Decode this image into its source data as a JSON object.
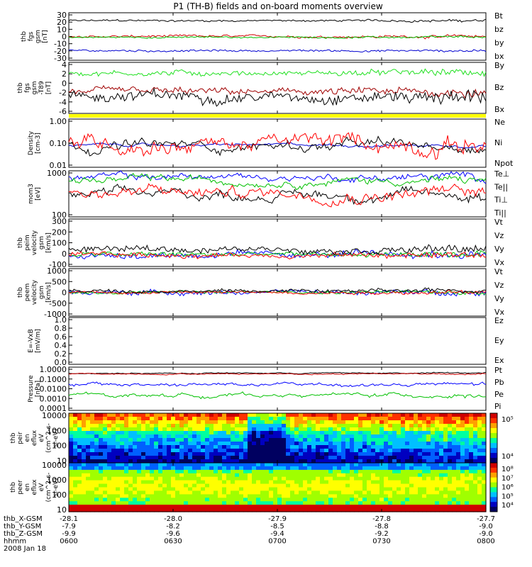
{
  "title": "P1 (TH-B) fields and on-board moments overview",
  "chart_data": [
    {
      "type": "line",
      "ylabel": [
        "thb",
        "fgs",
        "gsm",
        "[nT]"
      ],
      "yticks": [
        "30",
        "20",
        "10",
        "0",
        "-10",
        "-20",
        "-30"
      ],
      "ylim": [
        -30,
        30
      ],
      "scale": "linear",
      "legend": [
        {
          "name": "Bt",
          "color": "#000000"
        },
        {
          "name": "bz",
          "color": "#d00000"
        },
        {
          "name": "by",
          "color": "#00c000"
        },
        {
          "name": "bx",
          "color": "#0000d0"
        }
      ],
      "series": [
        {
          "name": "Bt",
          "color": "#000000",
          "base": 20,
          "noise": 1.2
        },
        {
          "name": "bz",
          "color": "#d00000",
          "base": 0,
          "noise": 1.5
        },
        {
          "name": "by",
          "color": "#00c000",
          "base": -1,
          "noise": 1.0
        },
        {
          "name": "bx",
          "color": "#0000d0",
          "base": -18,
          "noise": 1.2
        }
      ]
    },
    {
      "type": "line",
      "ylabel": [
        "thb",
        "fgs",
        "gsm",
        "-T89",
        "[nT]"
      ],
      "yticks": [
        "4",
        "2",
        "0",
        "-2",
        "-4",
        "-6"
      ],
      "ylim": [
        -7,
        5
      ],
      "scale": "linear",
      "legend": [
        {
          "name": "By",
          "color": "#00d000"
        },
        {
          "name": "Bz",
          "color": "#a00000"
        },
        {
          "name": "Bx",
          "color": "#000000"
        }
      ],
      "series": [
        {
          "name": "By",
          "color": "#20e020",
          "base": 2.5,
          "noise": 0.6
        },
        {
          "name": "Bz",
          "color": "#a00000",
          "base": -2,
          "noise": 0.8
        },
        {
          "name": "Bx",
          "color": "#000000",
          "base": -3,
          "noise": 1.2
        }
      ]
    },
    {
      "type": "flag",
      "color": "#ffff00"
    },
    {
      "type": "line",
      "ylabel": [
        "Density",
        "[cm-3]"
      ],
      "yticks": [
        "1.00",
        "0.10",
        "0.01"
      ],
      "ylim": [
        0.01,
        1.5
      ],
      "scale": "log",
      "legend": [
        {
          "name": "Ne",
          "color": "#d00000"
        },
        {
          "name": "Ni",
          "color": "#000000"
        },
        {
          "name": "Npot",
          "color": "#0000d0"
        }
      ],
      "series": [
        {
          "name": "Npot",
          "color": "#0000d0",
          "base": 0.1,
          "noise": 0.05
        },
        {
          "name": "Ni",
          "color": "#000000",
          "base": 0.09,
          "noise": 0.2
        },
        {
          "name": "Ne",
          "color": "#ff0000",
          "base": 0.12,
          "noise": 0.3
        }
      ]
    },
    {
      "type": "line",
      "ylabel": [
        "mom3",
        "[eV]"
      ],
      "yticks": [
        "1000",
        "100"
      ],
      "ylim": [
        30,
        5000
      ],
      "scale": "log",
      "legend": [
        {
          "name": "Te⊥",
          "color": "#d00000"
        },
        {
          "name": "Te||",
          "color": "#000000"
        },
        {
          "name": "Ti⊥",
          "color": "#d00000"
        },
        {
          "name": "Ti||",
          "color": "#00c000"
        }
      ],
      "series": [
        {
          "name": "Ti⊥",
          "color": "#0000ff",
          "base": 2500,
          "noise": 0.15
        },
        {
          "name": "Ti||",
          "color": "#00c000",
          "base": 1700,
          "noise": 0.15
        },
        {
          "name": "Te||",
          "color": "#000000",
          "base": 350,
          "noise": 0.2
        },
        {
          "name": "Te⊥",
          "color": "#ff0000",
          "base": 450,
          "noise": 0.25
        }
      ]
    },
    {
      "type": "line",
      "ylabel": [
        "thb",
        "peim",
        "velocity",
        "gsm",
        "[km/s]"
      ],
      "yticks": [
        "300",
        "200",
        "100",
        "0",
        "-100"
      ],
      "ylim": [
        -100,
        300
      ],
      "scale": "linear",
      "legend": [
        {
          "name": "Vt",
          "color": "#000000"
        },
        {
          "name": "Vz",
          "color": "#d00000"
        },
        {
          "name": "Vy",
          "color": "#00c000"
        },
        {
          "name": "Vx",
          "color": "#0000d0"
        }
      ],
      "series": [
        {
          "name": "Vx",
          "color": "#0000ff",
          "base": 0,
          "noise": 25
        },
        {
          "name": "Vy",
          "color": "#00c000",
          "base": 0,
          "noise": 20
        },
        {
          "name": "Vz",
          "color": "#ff0000",
          "base": -5,
          "noise": 20
        },
        {
          "name": "Vt",
          "color": "#000000",
          "base": 45,
          "noise": 25
        }
      ]
    },
    {
      "type": "line",
      "ylabel": [
        "thb",
        "peem",
        "velocity",
        "gsm",
        "[km/s]"
      ],
      "yticks": [
        "1000",
        "500",
        "0",
        "-500",
        "-1000"
      ],
      "ylim": [
        -1000,
        1000
      ],
      "scale": "linear",
      "legend": [
        {
          "name": "Vt",
          "color": "#000000"
        },
        {
          "name": "Vz",
          "color": "#d00000"
        },
        {
          "name": "Vy",
          "color": "#00c000"
        },
        {
          "name": "Vx",
          "color": "#0000d0"
        }
      ],
      "series": [
        {
          "name": "Vx",
          "color": "#0000ff",
          "base": 0,
          "noise": 90
        },
        {
          "name": "Vy",
          "color": "#00c000",
          "base": 0,
          "noise": 60
        },
        {
          "name": "Vz",
          "color": "#ff0000",
          "base": 0,
          "noise": 60
        },
        {
          "name": "Vt",
          "color": "#000000",
          "base": 60,
          "noise": 70
        }
      ]
    },
    {
      "type": "empty",
      "ylabel": [
        "E=-VxB",
        "[mV/m]"
      ],
      "yticks": [
        "1.0",
        "0.8",
        "0.6",
        "0.4",
        "0.2",
        "0.0"
      ],
      "ylim": [
        0,
        1
      ],
      "legend": [
        {
          "name": "Ez",
          "color": "#d00000"
        },
        {
          "name": "Ey",
          "color": "#00c000"
        },
        {
          "name": "Ex",
          "color": "#0000d0"
        }
      ]
    },
    {
      "type": "line",
      "ylabel": [
        "Pressure",
        "[nPa]"
      ],
      "yticks": [
        "1.0000",
        "0.1000",
        "0.0100",
        "0.0010",
        "0.0001"
      ],
      "ylim": [
        0.0001,
        1.5
      ],
      "scale": "log",
      "legend": [
        {
          "name": "Pt",
          "color": "#000000"
        },
        {
          "name": "Pb",
          "color": "#d00000"
        },
        {
          "name": "Pe",
          "color": "#00c000"
        },
        {
          "name": "Pi",
          "color": "#0000d0"
        }
      ],
      "series": [
        {
          "name": "Pt",
          "color": "#000000",
          "base": 0.4,
          "noise": 0.05
        },
        {
          "name": "Pb",
          "color": "#d00000",
          "base": 0.35,
          "noise": 0.05
        },
        {
          "name": "Pi",
          "color": "#0000ff",
          "base": 0.03,
          "noise": 0.15
        },
        {
          "name": "Pe",
          "color": "#00c000",
          "base": 0.003,
          "noise": 0.15
        }
      ]
    },
    {
      "type": "heatmap",
      "ylabel": [
        "thb",
        "peir",
        "en",
        "eflux",
        "eV",
        "(cm^2-s-",
        "sr-eV)"
      ],
      "yticks": [
        "10000",
        "1000",
        "100",
        "10"
      ],
      "scale": "log",
      "colorbar": [
        "10⁵",
        "10⁴"
      ]
    },
    {
      "type": "heatmap",
      "ylabel": [
        "thb",
        "peer",
        "en",
        "eflux",
        "eV",
        "(cm^2-s-",
        "sr-eV)"
      ],
      "yticks": [
        "10000",
        "1000",
        "100",
        "10"
      ],
      "scale": "log",
      "colorbar": [
        "10⁸",
        "10⁷",
        "10⁶",
        "10⁵",
        "10⁴"
      ]
    }
  ],
  "xaxis": {
    "rows": [
      {
        "label": "thb_X-GSM",
        "values": [
          "-28.1",
          "-28.0",
          "-27.9",
          "-27.8",
          "-27.7"
        ]
      },
      {
        "label": "thb_Y-GSM",
        "values": [
          "-7.9",
          "-8.2",
          "-8.5",
          "-8.8",
          "-9.0"
        ]
      },
      {
        "label": "thb_Z-GSM",
        "values": [
          "-9.9",
          "-9.6",
          "-9.4",
          "-9.2",
          "-9.0"
        ]
      },
      {
        "label": "hhmm",
        "values": [
          "0600",
          "0630",
          "0700",
          "0730",
          "0800"
        ]
      }
    ],
    "date": "2008 Jan 18"
  }
}
